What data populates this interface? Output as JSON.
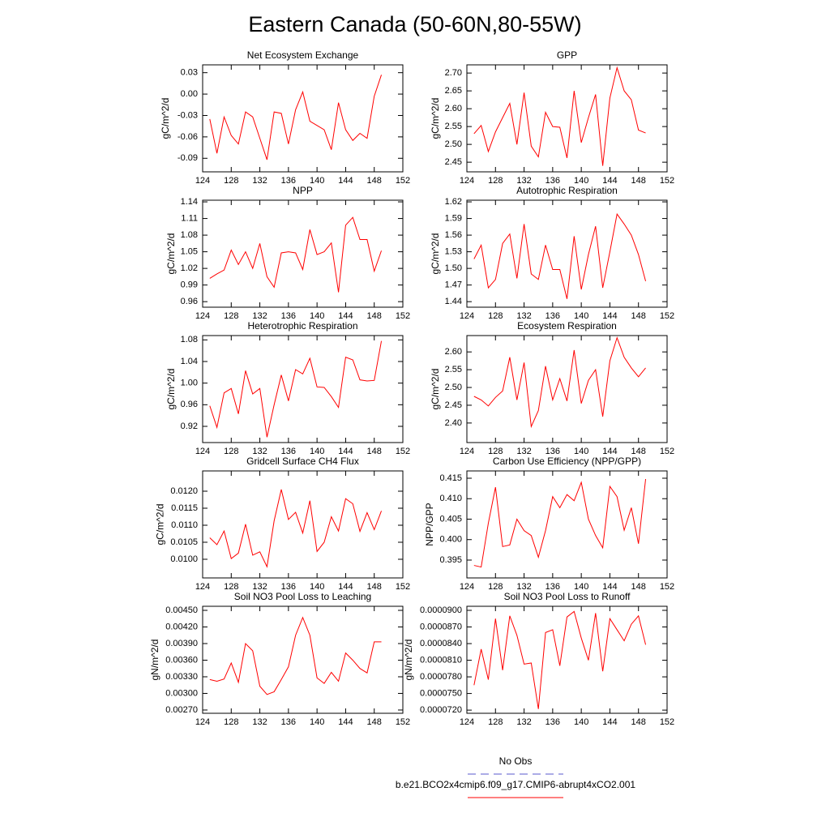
{
  "title": "Eastern Canada (50-60N,80-55W)",
  "legend": [
    {
      "name": "No Obs",
      "color": "#5a5acd",
      "dashed": true
    },
    {
      "name": "b.e21.BCO2x4cmip6.f09_g17.CMIP6-abrupt4xCO2.001",
      "color": "#ff0000",
      "dashed": false
    }
  ],
  "chart_data": [
    {
      "type": "line",
      "title": "Net Ecosystem Exchange",
      "ylabel": "gC/m^2/d",
      "color": "#ff0000",
      "x": [
        125,
        126,
        127,
        128,
        129,
        130,
        131,
        132,
        133,
        134,
        135,
        136,
        137,
        138,
        139,
        140,
        141,
        142,
        143,
        144,
        145,
        146,
        147,
        148,
        149
      ],
      "values": [
        -0.035,
        -0.083,
        -0.032,
        -0.058,
        -0.07,
        -0.025,
        -0.032,
        -0.062,
        -0.092,
        -0.025,
        -0.027,
        -0.07,
        -0.022,
        0.003,
        -0.038,
        -0.044,
        -0.05,
        -0.078,
        -0.012,
        -0.05,
        -0.065,
        -0.055,
        -0.062,
        -0.003,
        0.027
      ],
      "xlim": [
        124,
        152
      ],
      "xticks": [
        124,
        128,
        132,
        136,
        140,
        144,
        148,
        152
      ],
      "ylim": [
        -0.109,
        0.041
      ],
      "yticks": [
        -0.09,
        -0.06,
        -0.03,
        {
          "value": 0,
          "label": "0.00"
        },
        0.03
      ]
    },
    {
      "type": "line",
      "title": "GPP",
      "ylabel": "gC/m^2/d",
      "color": "#ff0000",
      "x": [
        125,
        126,
        127,
        128,
        129,
        130,
        131,
        132,
        133,
        134,
        135,
        136,
        137,
        138,
        139,
        140,
        141,
        142,
        143,
        144,
        145,
        146,
        147,
        148,
        149
      ],
      "values": [
        2.53,
        2.553,
        2.48,
        2.535,
        2.575,
        2.615,
        2.5,
        2.645,
        2.495,
        2.465,
        2.59,
        2.55,
        2.548,
        2.462,
        2.65,
        2.505,
        2.575,
        2.64,
        2.44,
        2.63,
        2.715,
        2.65,
        2.625,
        2.54,
        2.532
      ],
      "xlim": [
        124,
        152
      ],
      "xticks": [
        124,
        128,
        132,
        136,
        140,
        144,
        148,
        152
      ],
      "ylim": [
        2.423,
        2.723
      ],
      "yticks": [
        2.45,
        {
          "value": 2.5,
          "label": "2.50"
        },
        2.55,
        {
          "value": 2.6,
          "label": "2.60"
        },
        2.65,
        {
          "value": 2.7,
          "label": "2.70"
        }
      ]
    },
    {
      "type": "line",
      "title": "NPP",
      "ylabel": "gC/m^2/d",
      "color": "#ff0000",
      "x": [
        125,
        126,
        127,
        128,
        129,
        130,
        131,
        132,
        133,
        134,
        135,
        136,
        137,
        138,
        139,
        140,
        141,
        142,
        143,
        144,
        145,
        146,
        147,
        148,
        149
      ],
      "values": [
        1.002,
        1.01,
        1.017,
        1.053,
        1.027,
        1.05,
        1.02,
        1.065,
        1.005,
        0.986,
        1.048,
        1.05,
        1.048,
        1.018,
        1.09,
        1.045,
        1.05,
        1.066,
        0.977,
        1.098,
        1.112,
        1.072,
        1.072,
        1.015,
        1.052
      ],
      "xlim": [
        124,
        152
      ],
      "xticks": [
        124,
        128,
        132,
        136,
        140,
        144,
        148,
        152
      ],
      "ylim": [
        0.95,
        1.143
      ],
      "yticks": [
        0.96,
        0.99,
        1.02,
        1.05,
        1.08,
        1.11,
        1.14
      ]
    },
    {
      "type": "line",
      "title": "Autotrophic Respiration",
      "ylabel": "gC/m^2/d",
      "color": "#ff0000",
      "x": [
        125,
        126,
        127,
        128,
        129,
        130,
        131,
        132,
        133,
        134,
        135,
        136,
        137,
        138,
        139,
        140,
        141,
        142,
        143,
        144,
        145,
        146,
        147,
        148,
        149
      ],
      "values": [
        1.517,
        1.542,
        1.465,
        1.48,
        1.545,
        1.562,
        1.482,
        1.58,
        1.49,
        1.48,
        1.542,
        1.498,
        1.498,
        1.445,
        1.558,
        1.462,
        1.525,
        1.576,
        1.465,
        1.53,
        1.598,
        1.58,
        1.56,
        1.525,
        1.477
      ],
      "xlim": [
        124,
        152
      ],
      "xticks": [
        124,
        128,
        132,
        136,
        140,
        144,
        148,
        152
      ],
      "ylim": [
        1.43,
        1.623
      ],
      "yticks": [
        1.44,
        1.47,
        {
          "value": 1.5,
          "label": "1.50"
        },
        1.53,
        1.56,
        1.59,
        1.62
      ]
    },
    {
      "type": "line",
      "title": "Heterotrophic Respiration",
      "ylabel": "gC/m^2/d",
      "color": "#ff0000",
      "x": [
        125,
        126,
        127,
        128,
        129,
        130,
        131,
        132,
        133,
        134,
        135,
        136,
        137,
        138,
        139,
        140,
        141,
        142,
        143,
        144,
        145,
        146,
        147,
        148,
        149
      ],
      "values": [
        0.958,
        0.918,
        0.982,
        0.99,
        0.943,
        1.023,
        0.98,
        0.99,
        0.9,
        0.96,
        1.015,
        0.967,
        1.025,
        1.017,
        1.046,
        0.993,
        0.992,
        0.975,
        0.955,
        1.048,
        1.043,
        1.006,
        1.004,
        1.005,
        1.078
      ],
      "xlim": [
        124,
        152
      ],
      "xticks": [
        124,
        128,
        132,
        136,
        140,
        144,
        148,
        152
      ],
      "ylim": [
        0.89,
        1.088
      ],
      "yticks": [
        0.92,
        0.96,
        {
          "value": 1,
          "label": "1.00"
        },
        1.04,
        1.08
      ]
    },
    {
      "type": "line",
      "title": "Ecosystem Respiration",
      "ylabel": "gC/m^2/d",
      "color": "#ff0000",
      "x": [
        125,
        126,
        127,
        128,
        129,
        130,
        131,
        132,
        133,
        134,
        135,
        136,
        137,
        138,
        139,
        140,
        141,
        142,
        143,
        144,
        145,
        146,
        147,
        148,
        149
      ],
      "values": [
        2.475,
        2.465,
        2.448,
        2.472,
        2.49,
        2.585,
        2.465,
        2.57,
        2.39,
        2.435,
        2.56,
        2.465,
        2.525,
        2.462,
        2.605,
        2.455,
        2.52,
        2.55,
        2.418,
        2.575,
        2.64,
        2.585,
        2.555,
        2.53,
        2.555
      ],
      "xlim": [
        124,
        152
      ],
      "xticks": [
        124,
        128,
        132,
        136,
        140,
        144,
        148,
        152
      ],
      "ylim": [
        2.345,
        2.646
      ],
      "yticks": [
        {
          "value": 2.4,
          "label": "2.40"
        },
        2.45,
        {
          "value": 2.5,
          "label": "2.50"
        },
        2.55,
        {
          "value": 2.6,
          "label": "2.60"
        }
      ]
    },
    {
      "type": "line",
      "title": "Gridcell Surface CH4 Flux",
      "ylabel": "gC/m^2/d",
      "color": "#ff0000",
      "x": [
        125,
        126,
        127,
        128,
        129,
        130,
        131,
        132,
        133,
        134,
        135,
        136,
        137,
        138,
        139,
        140,
        141,
        142,
        143,
        144,
        145,
        146,
        147,
        148,
        149
      ],
      "values": [
        0.01063,
        0.01043,
        0.01083,
        0.01002,
        0.01018,
        0.01103,
        0.01012,
        0.01022,
        0.00978,
        0.01113,
        0.01205,
        0.01117,
        0.01138,
        0.01077,
        0.01172,
        0.01023,
        0.0105,
        0.01125,
        0.01083,
        0.01178,
        0.01163,
        0.01082,
        0.01137,
        0.01087,
        0.01142
      ],
      "xlim": [
        124,
        152
      ],
      "xticks": [
        124,
        128,
        132,
        136,
        140,
        144,
        148,
        152
      ],
      "ylim": [
        0.009452,
        0.012595
      ],
      "yticks": [
        {
          "value": 0.01,
          "label": "0.0100"
        },
        0.0105,
        {
          "value": 0.011,
          "label": "0.0110"
        },
        0.0115,
        {
          "value": 0.012,
          "label": "0.0120"
        }
      ]
    },
    {
      "type": "line",
      "title": "Carbon Use Efficiency (NPP/GPP)",
      "ylabel": "NPP/GPP",
      "color": "#ff0000",
      "x": [
        125,
        126,
        127,
        128,
        129,
        130,
        131,
        132,
        133,
        134,
        135,
        136,
        137,
        138,
        139,
        140,
        141,
        142,
        143,
        144,
        145,
        146,
        147,
        148,
        149
      ],
      "values": [
        0.3937,
        0.3933,
        0.404,
        0.4128,
        0.3983,
        0.3987,
        0.405,
        0.4022,
        0.401,
        0.3957,
        0.4022,
        0.4105,
        0.4078,
        0.411,
        0.4095,
        0.414,
        0.405,
        0.401,
        0.398,
        0.413,
        0.4105,
        0.4023,
        0.4078,
        0.399,
        0.4148
      ],
      "xlim": [
        124,
        152
      ],
      "xticks": [
        124,
        128,
        132,
        136,
        140,
        144,
        148,
        152
      ],
      "ylim": [
        0.39064,
        0.41678
      ],
      "yticks": [
        0.395,
        {
          "value": 0.4,
          "label": "0.400"
        },
        0.405,
        {
          "value": 0.41,
          "label": "0.410"
        },
        0.415
      ]
    },
    {
      "type": "line",
      "title": "Soil NO3 Pool Loss to Leaching",
      "ylabel": "gN/m^2/d",
      "color": "#ff0000",
      "x": [
        125,
        126,
        127,
        128,
        129,
        130,
        131,
        132,
        133,
        134,
        135,
        136,
        137,
        138,
        139,
        140,
        141,
        142,
        143,
        144,
        145,
        146,
        147,
        148,
        149
      ],
      "values": [
        0.00325,
        0.00322,
        0.00326,
        0.00355,
        0.0032,
        0.0039,
        0.00377,
        0.00313,
        0.00298,
        0.00303,
        0.00325,
        0.00348,
        0.00405,
        0.00437,
        0.00405,
        0.00328,
        0.00318,
        0.00338,
        0.00322,
        0.00373,
        0.0036,
        0.00345,
        0.00337,
        0.00393,
        0.00393
      ],
      "xlim": [
        124,
        152
      ],
      "xticks": [
        124,
        128,
        132,
        136,
        140,
        144,
        148,
        152
      ],
      "ylim": [
        0.002641,
        0.004573
      ],
      "yticks": [
        {
          "value": 0.0027,
          "label": "0.00270"
        },
        {
          "value": 0.003,
          "label": "0.00300"
        },
        {
          "value": 0.0033,
          "label": "0.00330"
        },
        {
          "value": 0.0036,
          "label": "0.00360"
        },
        {
          "value": 0.0039,
          "label": "0.00390"
        },
        {
          "value": 0.0042,
          "label": "0.00420"
        },
        {
          "value": 0.0045,
          "label": "0.00450"
        }
      ]
    },
    {
      "type": "line",
      "title": "Soil NO3 Pool Loss to Runoff",
      "ylabel": "gN/m^2/d",
      "color": "#ff0000",
      "x": [
        125,
        126,
        127,
        128,
        129,
        130,
        131,
        132,
        133,
        134,
        135,
        136,
        137,
        138,
        139,
        140,
        141,
        142,
        143,
        144,
        145,
        146,
        147,
        148,
        149
      ],
      "values": [
        7.65e-05,
        8.3e-05,
        7.75e-05,
        8.85e-05,
        7.92e-05,
        8.9e-05,
        8.55e-05,
        8.03e-05,
        8.05e-05,
        7.22e-05,
        8.6e-05,
        8.65e-05,
        8e-05,
        8.88e-05,
        8.98e-05,
        8.5e-05,
        8.1e-05,
        8.95e-05,
        7.9e-05,
        8.85e-05,
        8.65e-05,
        8.45e-05,
        8.75e-05,
        8.9e-05,
        8.38e-05
      ],
      "xlim": [
        124,
        152
      ],
      "xticks": [
        124,
        128,
        132,
        136,
        140,
        144,
        148,
        152
      ],
      "ylim": [
        7.143e-05,
        9.073e-05
      ],
      "yticks": [
        {
          "value": 7.2e-05,
          "label": "0.0000720"
        },
        {
          "value": 7.5e-05,
          "label": "0.0000750"
        },
        {
          "value": 7.8e-05,
          "label": "0.0000780"
        },
        {
          "value": 8.1e-05,
          "label": "0.0000810"
        },
        {
          "value": 8.4e-05,
          "label": "0.0000840"
        },
        {
          "value": 8.7e-05,
          "label": "0.0000870"
        },
        {
          "value": 9e-05,
          "label": "0.0000900"
        }
      ]
    }
  ]
}
